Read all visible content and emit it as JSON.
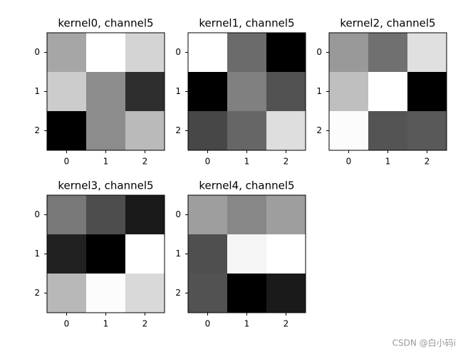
{
  "chart_data": [
    {
      "type": "heatmap",
      "title": "kernel0, channel5",
      "colormap": "gray",
      "values": [
        [
          0.65,
          1.0,
          0.83
        ],
        [
          0.8,
          0.55,
          0.18
        ],
        [
          0.0,
          0.55,
          0.73
        ]
      ],
      "xlim": [
        -0.5,
        2.5
      ],
      "ylim": [
        2.5,
        -0.5
      ],
      "xticks": [
        0,
        1,
        2
      ],
      "yticks": [
        0,
        1,
        2
      ]
    },
    {
      "type": "heatmap",
      "title": "kernel1, channel5",
      "colormap": "gray",
      "values": [
        [
          1.0,
          0.42,
          0.0
        ],
        [
          0.0,
          0.5,
          0.32
        ],
        [
          0.28,
          0.4,
          0.87
        ]
      ],
      "xlim": [
        -0.5,
        2.5
      ],
      "ylim": [
        2.5,
        -0.5
      ],
      "xticks": [
        0,
        1,
        2
      ],
      "yticks": [
        0,
        1,
        2
      ]
    },
    {
      "type": "heatmap",
      "title": "kernel2, channel5",
      "colormap": "gray",
      "values": [
        [
          0.6,
          0.44,
          0.88
        ],
        [
          0.75,
          1.0,
          0.0
        ],
        [
          0.99,
          0.33,
          0.35
        ]
      ],
      "xlim": [
        -0.5,
        2.5
      ],
      "ylim": [
        2.5,
        -0.5
      ],
      "xticks": [
        0,
        1,
        2
      ],
      "yticks": [
        0,
        1,
        2
      ]
    },
    {
      "type": "heatmap",
      "title": "kernel3, channel5",
      "colormap": "gray",
      "values": [
        [
          0.47,
          0.3,
          0.1
        ],
        [
          0.13,
          0.0,
          1.0
        ],
        [
          0.72,
          0.99,
          0.85
        ]
      ],
      "xlim": [
        -0.5,
        2.5
      ],
      "ylim": [
        2.5,
        -0.5
      ],
      "xticks": [
        0,
        1,
        2
      ],
      "yticks": [
        0,
        1,
        2
      ]
    },
    {
      "type": "heatmap",
      "title": "kernel4, channel5",
      "colormap": "gray",
      "values": [
        [
          0.62,
          0.53,
          0.62
        ],
        [
          0.31,
          0.96,
          1.0
        ],
        [
          0.32,
          0.0,
          0.1
        ]
      ],
      "xlim": [
        -0.5,
        2.5
      ],
      "ylim": [
        2.5,
        -0.5
      ],
      "xticks": [
        0,
        1,
        2
      ],
      "yticks": [
        0,
        1,
        2
      ]
    }
  ],
  "watermark": "CSDN @白小码i"
}
